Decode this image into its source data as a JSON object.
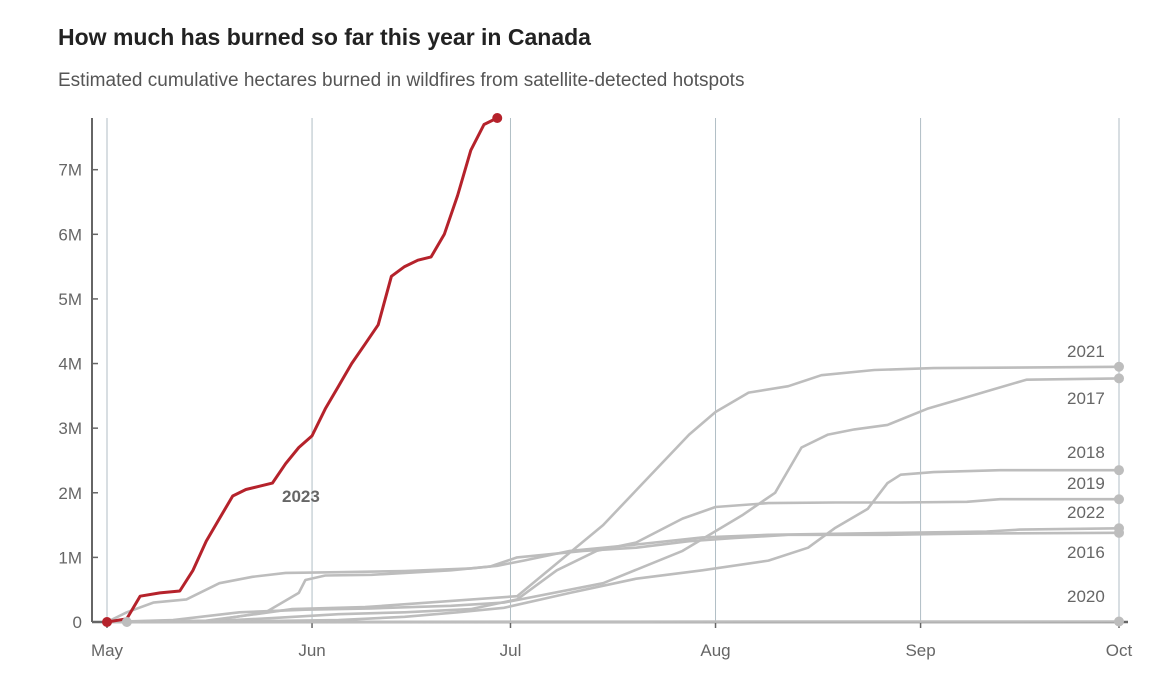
{
  "title": "How much has burned so far this year in Canada",
  "subtitle": "Estimated cumulative hectares burned in wildfires from satellite-detected hotspots",
  "colors": {
    "highlight": "#b5222b",
    "other": "#bdbdbd",
    "grid": "#b0bec5",
    "axis": "#666666"
  },
  "chart_data": {
    "type": "line",
    "title": "How much has burned so far this year in Canada",
    "subtitle": "Estimated cumulative hectares burned in wildfires from satellite-detected hotspots",
    "xlabel": "",
    "ylabel": "",
    "x_unit": "day of year (May 1 = 0)",
    "xlim": [
      0,
      153
    ],
    "ylim": [
      0,
      7800000
    ],
    "x_ticks": [
      {
        "label": "May",
        "value": 0
      },
      {
        "label": "Jun",
        "value": 31
      },
      {
        "label": "Jul",
        "value": 61
      },
      {
        "label": "Aug",
        "value": 92
      },
      {
        "label": "Sep",
        "value": 123
      },
      {
        "label": "Oct",
        "value": 153
      }
    ],
    "y_ticks": [
      {
        "label": "0",
        "value": 0
      },
      {
        "label": "1M",
        "value": 1000000
      },
      {
        "label": "2M",
        "value": 2000000
      },
      {
        "label": "3M",
        "value": 3000000
      },
      {
        "label": "4M",
        "value": 4000000
      },
      {
        "label": "5M",
        "value": 5000000
      },
      {
        "label": "6M",
        "value": 6000000
      },
      {
        "label": "7M",
        "value": 7000000
      }
    ],
    "grid": true,
    "series": [
      {
        "name": "2021",
        "label": "2021",
        "highlight": false,
        "end_marker": true,
        "x": [
          0,
          15,
          21,
          28,
          39,
          62,
          75,
          88,
          92,
          97,
          103,
          108,
          116,
          125,
          153
        ],
        "y": [
          0,
          20000,
          100000,
          200000,
          230000,
          400000,
          1500000,
          2900000,
          3250000,
          3550000,
          3650000,
          3820000,
          3900000,
          3930000,
          3950000
        ]
      },
      {
        "name": "2017",
        "label": "2017",
        "highlight": false,
        "end_marker": true,
        "x": [
          0,
          10,
          20,
          30,
          40,
          52,
          60,
          75,
          87,
          96,
          101,
          105,
          109,
          113,
          118,
          124,
          129,
          134,
          139,
          153
        ],
        "y": [
          0,
          30000,
          150000,
          190000,
          210000,
          250000,
          300000,
          600000,
          1100000,
          1650000,
          2000000,
          2700000,
          2900000,
          2980000,
          3050000,
          3300000,
          3450000,
          3600000,
          3750000,
          3770000
        ]
      },
      {
        "name": "2018",
        "label": "2018",
        "highlight": false,
        "end_marker": true,
        "x": [
          0,
          20,
          35,
          45,
          53,
          60,
          70,
          80,
          90,
          100,
          106,
          110,
          115,
          118,
          120,
          125,
          135,
          153
        ],
        "y": [
          0,
          10000,
          30000,
          80000,
          150000,
          220000,
          450000,
          670000,
          800000,
          950000,
          1150000,
          1450000,
          1750000,
          2150000,
          2280000,
          2320000,
          2350000,
          2350000
        ]
      },
      {
        "name": "2019",
        "label": "2019",
        "highlight": false,
        "end_marker": true,
        "x": [
          0,
          3,
          7,
          12,
          17,
          22,
          27,
          35,
          45,
          55,
          59,
          63,
          70,
          80,
          90,
          100,
          120,
          133,
          138,
          153
        ],
        "y": [
          0,
          150000,
          300000,
          350000,
          600000,
          700000,
          760000,
          770000,
          790000,
          830000,
          870000,
          950000,
          1100000,
          1200000,
          1310000,
          1350000,
          1380000,
          1400000,
          1430000,
          1450000
        ]
      },
      {
        "name": "2022",
        "label": "2022",
        "highlight": false,
        "end_marker": true,
        "x": [
          0,
          15,
          25,
          35,
          45,
          55,
          62,
          68,
          74,
          80,
          87,
          92,
          100,
          110,
          120,
          130,
          135,
          153
        ],
        "y": [
          0,
          10000,
          60000,
          120000,
          150000,
          200000,
          350000,
          800000,
          1100000,
          1230000,
          1600000,
          1780000,
          1840000,
          1850000,
          1850000,
          1860000,
          1900000,
          1900000
        ]
      },
      {
        "name": "2016",
        "label": "2016",
        "highlight": false,
        "end_marker": true,
        "x": [
          0,
          15,
          24,
          29,
          30,
          33,
          40,
          52,
          58,
          62,
          72,
          80,
          88,
          95,
          103,
          108,
          113,
          118,
          125,
          133,
          153
        ],
        "y": [
          0,
          10000,
          150000,
          450000,
          650000,
          720000,
          730000,
          800000,
          860000,
          1000000,
          1100000,
          1150000,
          1250000,
          1300000,
          1350000,
          1350000,
          1350000,
          1350000,
          1360000,
          1370000,
          1380000
        ]
      },
      {
        "name": "2020",
        "label": "2020",
        "highlight": false,
        "end_marker": true,
        "x": [
          0,
          30,
          60,
          100,
          153
        ],
        "y": [
          0,
          2000,
          4000,
          6000,
          8000
        ]
      },
      {
        "name": "2023",
        "label": "2023",
        "highlight": true,
        "end_marker": true,
        "start_marker": true,
        "x": [
          0,
          3,
          5,
          8,
          11,
          13,
          15,
          17,
          19,
          21,
          23,
          25,
          27,
          29,
          31,
          33,
          35,
          37,
          39,
          41,
          43,
          45,
          47,
          49,
          51,
          53,
          55,
          57,
          59
        ],
        "y": [
          0,
          50000,
          400000,
          450000,
          480000,
          800000,
          1250000,
          1600000,
          1950000,
          2050000,
          2100000,
          2150000,
          2450000,
          2700000,
          2880000,
          3300000,
          3650000,
          4000000,
          4300000,
          4600000,
          5350000,
          5500000,
          5600000,
          5650000,
          6000000,
          6600000,
          7300000,
          7700000,
          7800000
        ]
      }
    ]
  }
}
